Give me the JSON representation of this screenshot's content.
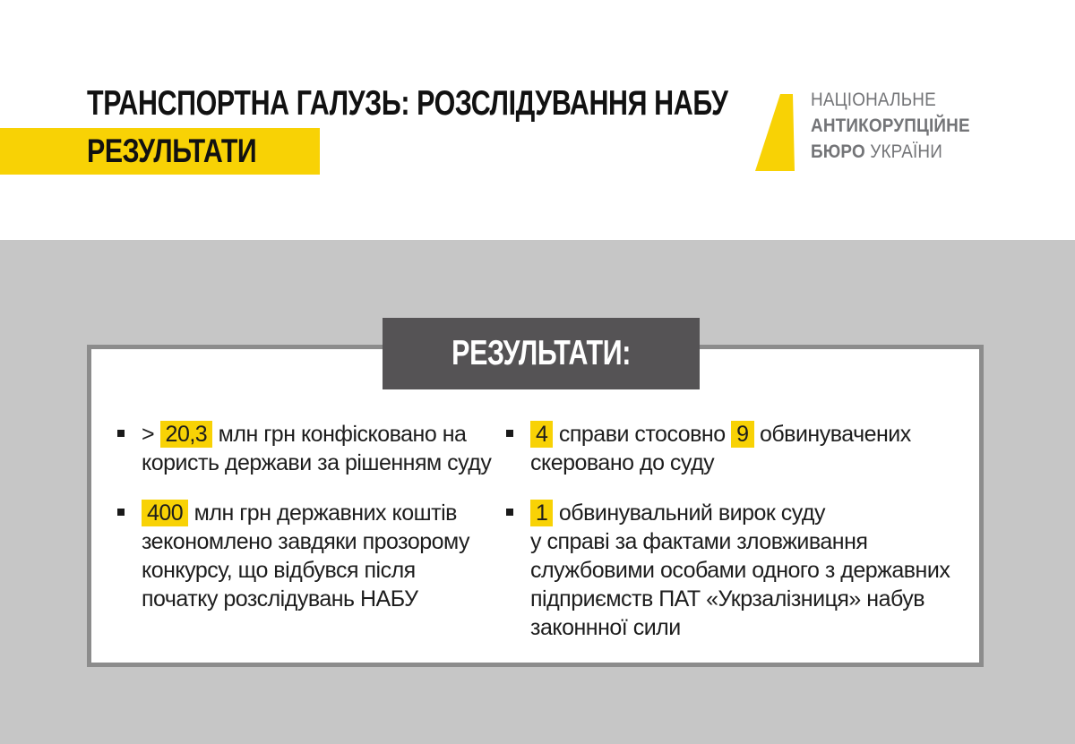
{
  "header": {
    "title": "ТРАНСПОРТНА ГАЛУЗЬ: РОЗСЛІДУВАННЯ НАБУ",
    "subtitle": "РЕЗУЛЬТАТИ"
  },
  "logo": {
    "line1": "НАЦІОНАЛЬНЕ",
    "line2": "АНТИКОРУПЦІЙНЕ",
    "line3_bold": "БЮРО",
    "line3_regular": "УКРАЇНИ"
  },
  "results": {
    "header": "РЕЗУЛЬТАТИ:",
    "columns": [
      {
        "items": [
          {
            "segments": [
              {
                "text": "> ",
                "highlight": false
              },
              {
                "text": "20,3",
                "highlight": true
              },
              {
                "text": " млн грн конфісковано на\nкористь держави за рішенням суду",
                "highlight": false
              }
            ]
          },
          {
            "segments": [
              {
                "text": "400",
                "highlight": true
              },
              {
                "text": " млн грн державних коштів\nзекономлено завдяки прозорому\nконкурсу, що відбувся після\nпочатку розслідувань НАБУ",
                "highlight": false
              }
            ]
          }
        ]
      },
      {
        "items": [
          {
            "segments": [
              {
                "text": "4",
                "highlight": true
              },
              {
                "text": " справи стосовно ",
                "highlight": false
              },
              {
                "text": "9",
                "highlight": true
              },
              {
                "text": " обвинувачених\nскеровано до суду",
                "highlight": false
              }
            ]
          },
          {
            "segments": [
              {
                "text": "1",
                "highlight": true
              },
              {
                "text": " обвинувальний вирок суду\nу справі за фактами зловживання\nслужбовими особами одного з державних\nпідприємств ПАТ «Укрзалізниця» набув\nзаконнної сили",
                "highlight": false
              }
            ]
          }
        ]
      }
    ]
  },
  "colors": {
    "accent_yellow": "#F8D205",
    "dark_box": "#555355",
    "gray_bg": "#C6C6C6",
    "card_border": "#8C8C8C",
    "logo_text": "#737477",
    "text_black": "#1D1D1D"
  }
}
